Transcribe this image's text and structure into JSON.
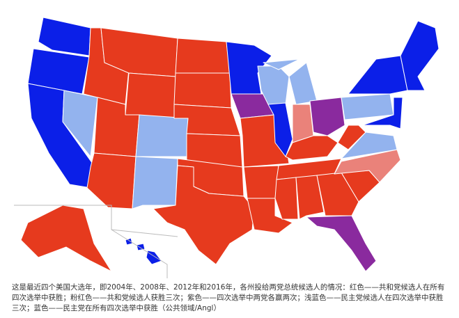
{
  "caption": "这是最近四个美国大选年，即2004年、2008年、2012年和2016年，各州投给两党总统候选人的情况：红色——共和党候选人在所有四次选举中获胜；粉红色——共和党候选人获胜三次；紫色——四次选举中两党各赢两次；浅蓝色——民主党候选人在四次选举中获胜三次；蓝色——民主党在所有四次选举中获胜（公共领域/Angl）"
}
